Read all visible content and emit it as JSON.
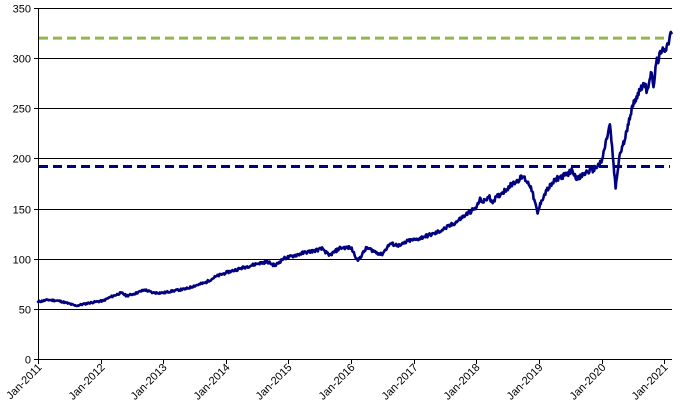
{
  "chart_data": {
    "type": "line",
    "title": "",
    "xlabel": "",
    "ylabel": "",
    "ylim": [
      0,
      350
    ],
    "xlim": [
      "2011-01-01",
      "2021-02-15"
    ],
    "yticks": [
      0,
      50,
      100,
      150,
      200,
      250,
      300,
      350
    ],
    "xticks": [
      {
        "date": "2011-01-01",
        "label": "Jan-2011"
      },
      {
        "date": "2012-01-01",
        "label": "Jan-2012"
      },
      {
        "date": "2013-01-01",
        "label": "Jan-2013"
      },
      {
        "date": "2014-01-01",
        "label": "Jan-2014"
      },
      {
        "date": "2015-01-01",
        "label": "Jan-2015"
      },
      {
        "date": "2016-01-01",
        "label": "Jan-2016"
      },
      {
        "date": "2017-01-01",
        "label": "Jan-2017"
      },
      {
        "date": "2018-01-01",
        "label": "Jan-2018"
      },
      {
        "date": "2019-01-01",
        "label": "Jan-2019"
      },
      {
        "date": "2020-01-01",
        "label": "Jan-2020"
      },
      {
        "date": "2021-01-01",
        "label": "Jan-2021"
      }
    ],
    "grid": "horizontal",
    "legend": "none",
    "series": [
      {
        "color": "#000080",
        "x": [
          "2011-01-01",
          "2011-03-01",
          "2011-05-01",
          "2011-06-15",
          "2011-08-10",
          "2011-10-01",
          "2011-12-01",
          "2012-01-15",
          "2012-03-01",
          "2012-05-01",
          "2012-06-01",
          "2012-07-15",
          "2012-09-15",
          "2012-11-01",
          "2013-01-01",
          "2013-03-01",
          "2013-05-15",
          "2013-07-01",
          "2013-09-01",
          "2013-11-01",
          "2014-01-01",
          "2014-03-01",
          "2014-05-01",
          "2014-07-01",
          "2014-09-01",
          "2014-10-15",
          "2014-12-01",
          "2015-02-01",
          "2015-04-01",
          "2015-06-01",
          "2015-07-20",
          "2015-08-25",
          "2015-11-01",
          "2016-01-01",
          "2016-02-10",
          "2016-04-01",
          "2016-06-27",
          "2016-08-15",
          "2016-10-15",
          "2016-12-01",
          "2017-01-15",
          "2017-03-01",
          "2017-05-01",
          "2017-07-01",
          "2017-09-01",
          "2017-11-01",
          "2018-01-01",
          "2018-01-26",
          "2018-02-08",
          "2018-03-15",
          "2018-04-02",
          "2018-06-01",
          "2018-08-01",
          "2018-10-01",
          "2018-11-15",
          "2018-12-24",
          "2019-01-15",
          "2019-02-15",
          "2019-04-15",
          "2019-05-31",
          "2019-07-15",
          "2019-08-15",
          "2019-10-01",
          "2019-11-15",
          "2020-01-01",
          "2020-02-19",
          "2020-03-23",
          "2020-04-15",
          "2020-05-15",
          "2020-06-10",
          "2020-07-15",
          "2020-08-31",
          "2020-09-23",
          "2020-10-15",
          "2020-10-30",
          "2020-11-15",
          "2020-12-15",
          "2021-01-01",
          "2021-01-15",
          "2021-02-12"
        ],
        "values": [
          57,
          59,
          58,
          56,
          53,
          55,
          57,
          58,
          62,
          66,
          63,
          65,
          69,
          66,
          66,
          68,
          70,
          73,
          76,
          82,
          86,
          89,
          92,
          95,
          97,
          93,
          100,
          103,
          106,
          108,
          110,
          103,
          111,
          111,
          98,
          111,
          104,
          115,
          113,
          118,
          119,
          122,
          125,
          130,
          136,
          144,
          151,
          160,
          156,
          162,
          157,
          166,
          175,
          182,
          172,
          145,
          158,
          168,
          180,
          183,
          188,
          179,
          186,
          189,
          196,
          234,
          170,
          203,
          218,
          240,
          259,
          275,
          268,
          286,
          271,
          295,
          305,
          309,
          312,
          325
        ]
      }
    ],
    "reference_lines": [
      {
        "y": 320,
        "color": "#92B64F",
        "style": "dashed"
      },
      {
        "y": 192,
        "color": "#000080",
        "style": "dashed"
      }
    ]
  }
}
